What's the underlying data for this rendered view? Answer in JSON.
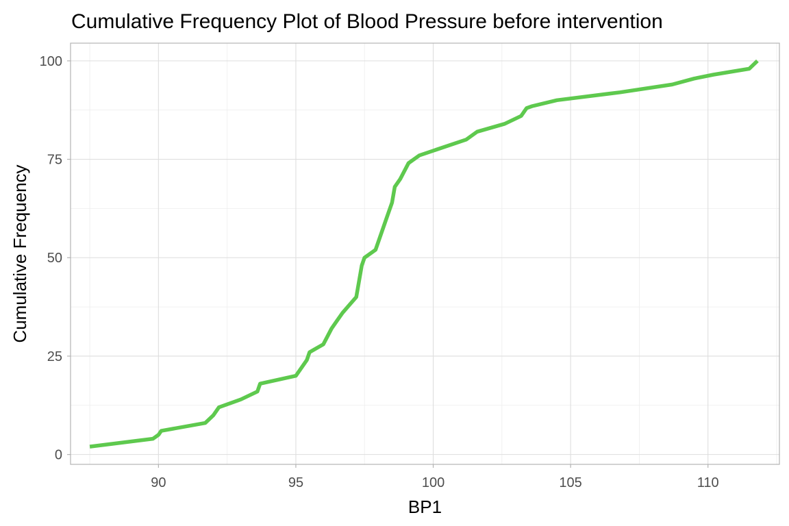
{
  "chart_data": {
    "type": "line",
    "title": "Cumulative Frequency Plot of Blood Pressure before  intervention",
    "xlabel": "BP1",
    "ylabel": "Cumulative Frequency",
    "xlim": [
      86.8,
      112.6
    ],
    "ylim": [
      -2.5,
      104.5
    ],
    "x_ticks": [
      90,
      95,
      100,
      105,
      110
    ],
    "y_ticks": [
      0,
      25,
      50,
      75,
      100
    ],
    "grid": true,
    "legend": "none",
    "line_color": "#5ec94e",
    "series": [
      {
        "x": [
          87.5,
          89.8,
          90.0,
          90.1,
          91.7,
          92.0,
          92.2,
          93.0,
          93.6,
          93.7,
          95.0,
          95.4,
          95.5,
          96.0,
          96.3,
          96.5,
          96.7,
          97.2,
          97.4,
          97.5,
          97.9,
          98.3,
          98.5,
          98.6,
          98.8,
          99.1,
          99.5,
          101.2,
          101.6,
          102.6,
          103.2,
          103.4,
          103.6,
          104.5,
          106.8,
          108.7,
          109.5,
          110.2,
          111.5,
          111.8
        ],
        "y": [
          2,
          4,
          5,
          6,
          8,
          10,
          12,
          14,
          16,
          18,
          20,
          24,
          26,
          28,
          32,
          34,
          36,
          40,
          48,
          50,
          52,
          60,
          64,
          68,
          70,
          74,
          76,
          80,
          82,
          84,
          86,
          88,
          88.5,
          90,
          92,
          94,
          95.5,
          96.5,
          98,
          100
        ]
      }
    ]
  }
}
